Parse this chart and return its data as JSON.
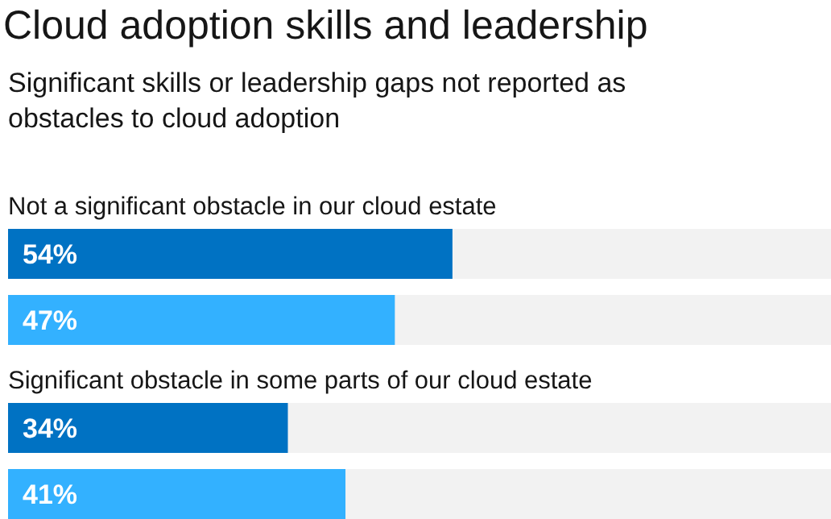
{
  "chart_data": {
    "type": "bar",
    "orientation": "horizontal",
    "title": "Cloud adoption skills and leadership",
    "subtitle": "Significant skills or leadership gaps not reported as obstacles to cloud adoption",
    "categories": [
      "Not a significant obstacle in our cloud estate",
      "Significant obstacle in some parts of our cloud estate"
    ],
    "xlim": [
      0,
      100
    ],
    "series": [
      {
        "color": "#0072c3",
        "values": [
          54,
          34
        ],
        "value_labels": [
          "54%",
          "34%"
        ]
      },
      {
        "color": "#33b1ff",
        "values": [
          47,
          41
        ],
        "value_labels": [
          "47%",
          "41%"
        ]
      }
    ]
  }
}
